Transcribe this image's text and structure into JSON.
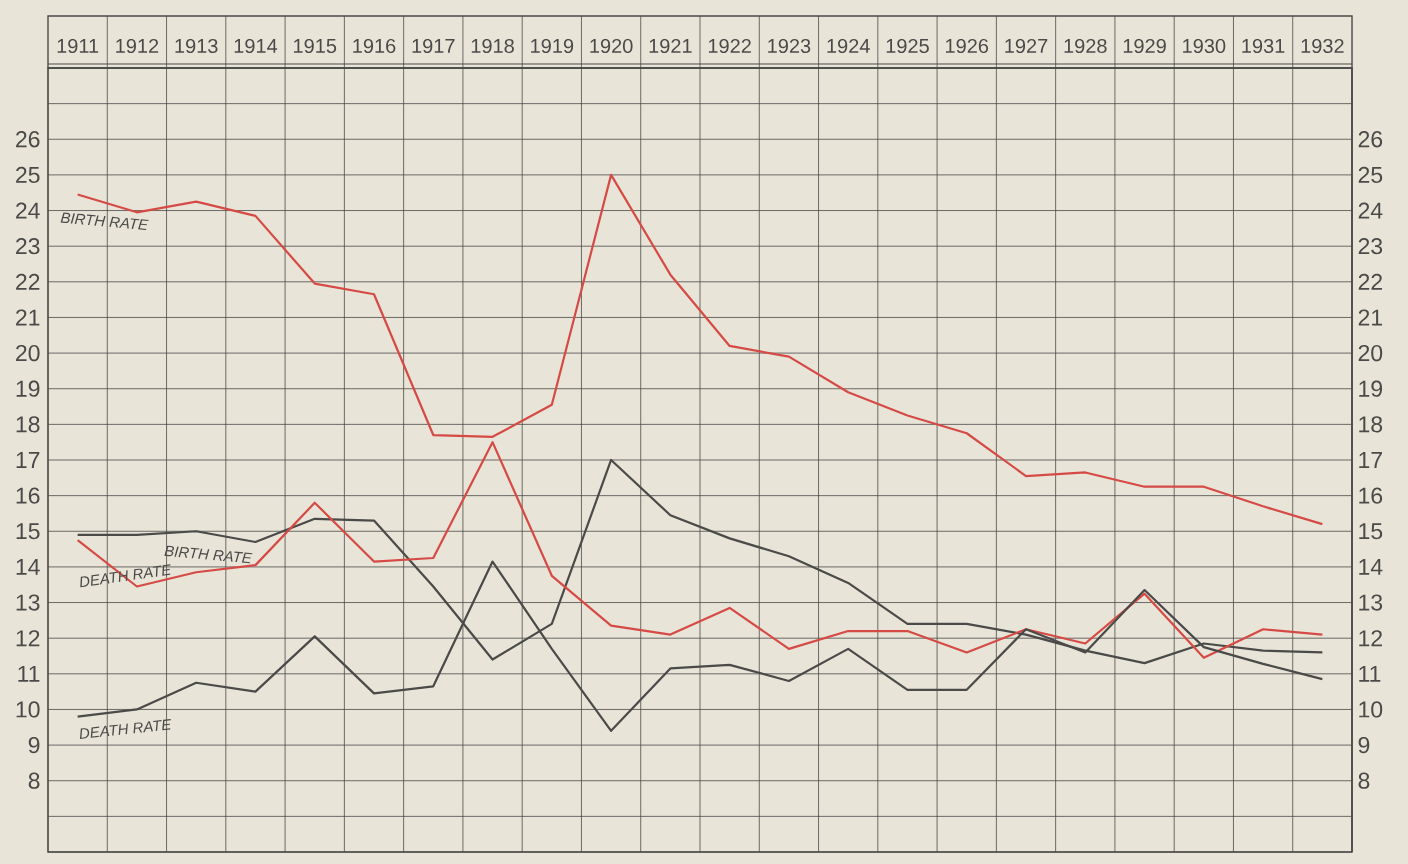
{
  "chart_data": {
    "type": "line",
    "categories": [
      "1911",
      "1912",
      "1913",
      "1914",
      "1915",
      "1916",
      "1917",
      "1918",
      "1919",
      "1920",
      "1921",
      "1922",
      "1923",
      "1924",
      "1925",
      "1926",
      "1927",
      "1928",
      "1929",
      "1930",
      "1931",
      "1932"
    ],
    "series": [
      {
        "name": "BIRTH RATE",
        "color": "#d64a45",
        "values": [
          24.45,
          23.95,
          24.25,
          23.85,
          21.95,
          21.65,
          17.7,
          17.65,
          18.55,
          25.0,
          22.2,
          20.2,
          19.9,
          18.9,
          18.25,
          17.75,
          16.55,
          16.65,
          16.25,
          16.25,
          15.7,
          15.2
        ]
      },
      {
        "name": "BIRTH RATE",
        "color": "#4a4a48",
        "values": [
          14.9,
          14.9,
          15.0,
          14.7,
          15.35,
          15.3,
          13.45,
          11.4,
          12.4,
          17.0,
          15.45,
          14.8,
          14.3,
          13.55,
          12.4,
          12.4,
          12.1,
          11.65,
          11.3,
          11.85,
          11.65,
          11.6
        ]
      },
      {
        "name": "DEATH RATE",
        "color": "#d64a45",
        "values": [
          14.75,
          13.45,
          13.85,
          14.05,
          15.8,
          14.15,
          14.25,
          17.5,
          13.75,
          12.35,
          12.1,
          12.85,
          11.7,
          12.2,
          12.2,
          11.6,
          12.25,
          11.85,
          13.25,
          11.45,
          12.25,
          12.1
        ]
      },
      {
        "name": "DEATH RATE",
        "color": "#4a4a48",
        "values": [
          9.8,
          10.0,
          10.75,
          10.5,
          12.05,
          10.45,
          10.65,
          14.15,
          11.7,
          9.4,
          11.15,
          11.25,
          10.8,
          11.7,
          10.55,
          10.55,
          12.25,
          11.6,
          13.35,
          11.75,
          11.28,
          10.85
        ]
      }
    ],
    "ylim": [
      6,
      28
    ],
    "yticks": [
      {
        "value": 6,
        "label": null
      },
      {
        "value": 7,
        "label": null
      },
      8,
      9,
      10,
      11,
      12,
      13,
      14,
      15,
      16,
      17,
      18,
      19,
      20,
      21,
      22,
      23,
      24,
      25,
      26,
      {
        "value": 27,
        "label": null
      },
      {
        "value": 28,
        "label": null
      }
    ],
    "y2lim": [
      6,
      28
    ],
    "y2ticks": [
      8,
      9,
      10,
      11,
      12,
      13,
      14,
      15,
      16,
      17,
      18,
      19,
      20,
      21,
      22,
      23,
      24,
      25,
      26
    ],
    "grid": true
  }
}
